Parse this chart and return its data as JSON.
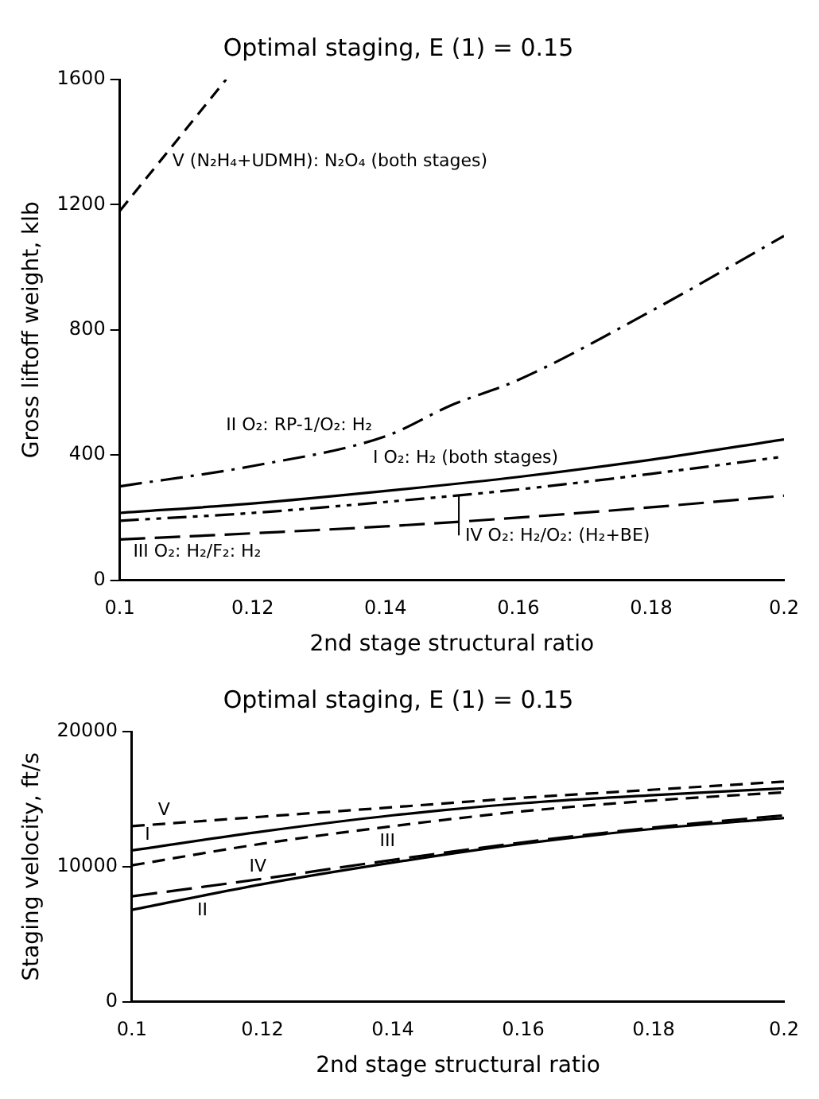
{
  "chart_data": [
    {
      "type": "line",
      "title": "Optimal staging, E (1) = 0.15",
      "xlabel": "2nd stage structural ratio",
      "ylabel": "Gross liftoff weight, klb",
      "xlim": [
        0.1,
        0.2
      ],
      "xticks": [
        0.1,
        0.12,
        0.14,
        0.16,
        0.18,
        0.2
      ],
      "ylim": [
        0,
        1600
      ],
      "yticks": [
        0,
        400,
        800,
        1200,
        1600
      ],
      "grid": false,
      "legend": false,
      "marker": "none",
      "series": [
        {
          "name": "V (N₂H₄+UDMH): N₂O₄ (both stages)",
          "color": "#000000",
          "line_style": "dashed",
          "x": [
            0.1,
            0.108,
            0.116
          ],
          "values": [
            1180,
            1390,
            1600
          ]
        },
        {
          "name": "II O₂: RP-1/O₂: H₂",
          "color": "#000000",
          "line_style": "dashed",
          "x": [
            0.1,
            0.12,
            0.14,
            0.15,
            0.16,
            0.18,
            0.2
          ],
          "values": [
            300,
            365,
            460,
            560,
            640,
            860,
            1100
          ]
        },
        {
          "name": "I O₂: H₂ (both stages)",
          "color": "#000000",
          "line_style": "solid",
          "x": [
            0.1,
            0.12,
            0.14,
            0.16,
            0.18,
            0.2
          ],
          "values": [
            215,
            245,
            285,
            330,
            385,
            450
          ]
        },
        {
          "name": "IV O₂: H₂/O₂: (H₂+BE)",
          "color": "#000000",
          "line_style": "dashed",
          "x": [
            0.1,
            0.12,
            0.14,
            0.16,
            0.18,
            0.2
          ],
          "values": [
            190,
            215,
            250,
            290,
            340,
            395
          ]
        },
        {
          "name": "III O₂: H₂/F₂: H₂",
          "color": "#000000",
          "line_style": "dashed",
          "x": [
            0.1,
            0.12,
            0.14,
            0.16,
            0.18,
            0.2
          ],
          "values": [
            130,
            150,
            172,
            200,
            233,
            270
          ]
        }
      ]
    },
    {
      "type": "line",
      "title": "Optimal staging, E (1) = 0.15",
      "xlabel": "2nd stage structural ratio",
      "ylabel": "Staging velocity, ft/s",
      "xlim": [
        0.1,
        0.2
      ],
      "xticks": [
        0.1,
        0.12,
        0.14,
        0.16,
        0.18,
        0.2
      ],
      "ylim": [
        0,
        20000
      ],
      "yticks": [
        0,
        10000,
        20000
      ],
      "grid": false,
      "legend": false,
      "marker": "none",
      "series": [
        {
          "name": "V",
          "color": "#000000",
          "line_style": "dashed",
          "x": [
            0.1,
            0.12,
            0.14,
            0.16,
            0.18,
            0.2
          ],
          "values": [
            13000,
            13700,
            14400,
            15100,
            15700,
            16300
          ]
        },
        {
          "name": "I",
          "color": "#000000",
          "line_style": "solid",
          "x": [
            0.1,
            0.12,
            0.14,
            0.16,
            0.18,
            0.2
          ],
          "values": [
            11200,
            12600,
            13800,
            14700,
            15300,
            15800
          ]
        },
        {
          "name": "III",
          "color": "#000000",
          "line_style": "dashed",
          "x": [
            0.1,
            0.12,
            0.14,
            0.16,
            0.18,
            0.2
          ],
          "values": [
            10100,
            11700,
            13000,
            14100,
            14900,
            15500
          ]
        },
        {
          "name": "II",
          "color": "#000000",
          "line_style": "solid",
          "x": [
            0.1,
            0.12,
            0.14,
            0.16,
            0.18,
            0.2
          ],
          "values": [
            6800,
            8700,
            10300,
            11700,
            12800,
            13600
          ]
        },
        {
          "name": "IV",
          "color": "#000000",
          "line_style": "dashed",
          "x": [
            0.1,
            0.12,
            0.14,
            0.16,
            0.18,
            0.2
          ],
          "values": [
            7800,
            9100,
            10500,
            11800,
            12900,
            13800
          ]
        }
      ]
    }
  ]
}
